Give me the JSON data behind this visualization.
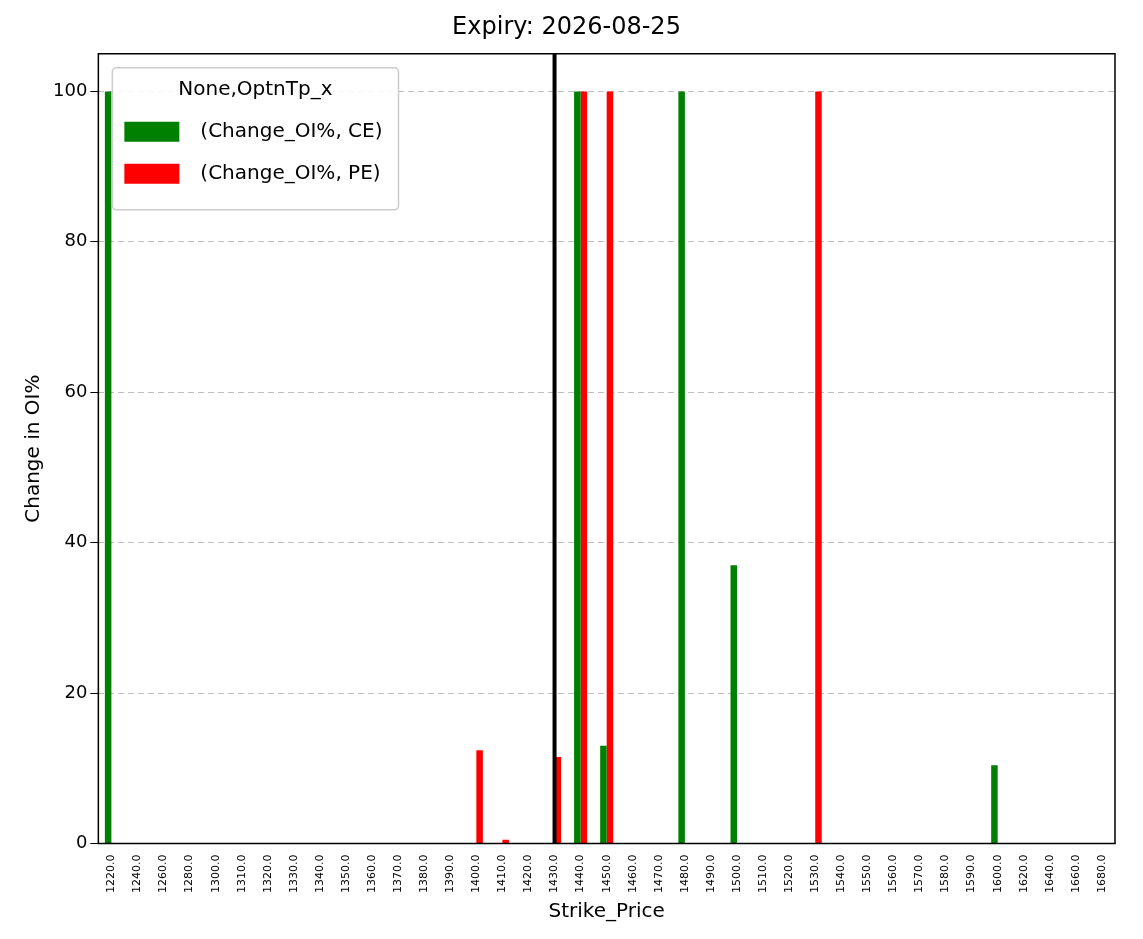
{
  "chart_data": {
    "type": "bar",
    "title": "Expiry: 2026-08-25",
    "xlabel": "Strike_Price",
    "ylabel": "Change in OI%",
    "legend_title": "None,OptnTp_x",
    "categories": [
      "1220.0",
      "1240.0",
      "1260.0",
      "1280.0",
      "1300.0",
      "1310.0",
      "1320.0",
      "1330.0",
      "1340.0",
      "1350.0",
      "1360.0",
      "1370.0",
      "1380.0",
      "1390.0",
      "1400.0",
      "1410.0",
      "1420.0",
      "1430.0",
      "1440.0",
      "1450.0",
      "1460.0",
      "1470.0",
      "1480.0",
      "1490.0",
      "1500.0",
      "1510.0",
      "1520.0",
      "1530.0",
      "1540.0",
      "1550.0",
      "1560.0",
      "1570.0",
      "1580.0",
      "1590.0",
      "1600.0",
      "1620.0",
      "1640.0",
      "1660.0",
      "1680.0"
    ],
    "series": [
      {
        "name": "(Change_OI%, CE)",
        "color": "#008000",
        "values": [
          100,
          0,
          0,
          0,
          0,
          0,
          0,
          0,
          0,
          0,
          0,
          0,
          0,
          0,
          0,
          0,
          0,
          null,
          100,
          13,
          0,
          0,
          100,
          0,
          37,
          0,
          0,
          0,
          0,
          0,
          0,
          0,
          0,
          0,
          10.4,
          0,
          0,
          0,
          0
        ]
      },
      {
        "name": "(Change_OI%, PE)",
        "color": "#ff0000",
        "values": [
          0,
          0,
          0,
          0,
          0,
          0,
          0,
          0,
          0,
          0,
          0,
          0,
          0,
          0,
          12.4,
          0.5,
          0,
          11.5,
          100,
          100,
          0,
          0,
          0,
          0,
          0,
          0,
          0,
          100,
          0,
          0,
          0,
          0,
          0,
          0,
          0,
          0,
          0,
          0,
          0
        ]
      }
    ],
    "ylim": [
      0,
      105
    ],
    "yticks": [
      0,
      20,
      40,
      60,
      80,
      100
    ],
    "grid": "y",
    "legend": "top left",
    "ref_lines": [
      {
        "axis": "x",
        "value": "1430.0",
        "color": "#000000"
      }
    ]
  }
}
